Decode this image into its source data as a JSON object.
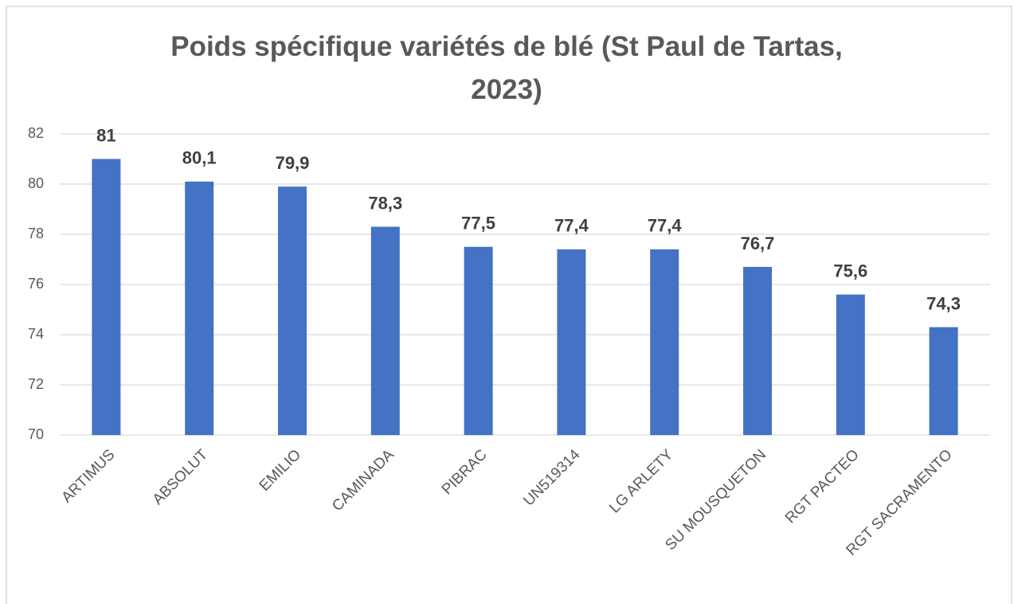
{
  "chart_data": {
    "type": "bar",
    "title": "Poids spécifique variétés de blé (St Paul de Tartas, 2023)",
    "categories": [
      "ARTIMUS",
      "ABSOLUT",
      "EMILIO",
      "CAMINADA",
      "PIBRAC",
      "UN519314",
      "LG ARLETY",
      "SU MOUSQUETON",
      "RGT PACTEO",
      "RGT SACRAMENTO"
    ],
    "values": [
      81,
      80.1,
      79.9,
      78.3,
      77.5,
      77.4,
      77.4,
      76.7,
      75.6,
      74.3
    ],
    "value_labels": [
      "81",
      "80,1",
      "79,9",
      "78,3",
      "77,5",
      "77,4",
      "77,4",
      "76,7",
      "75,6",
      "74,3"
    ],
    "color": "#4472c4",
    "ylim": [
      70,
      82
    ],
    "yticks": [
      70,
      72,
      74,
      76,
      78,
      80,
      82
    ],
    "grid": true
  }
}
